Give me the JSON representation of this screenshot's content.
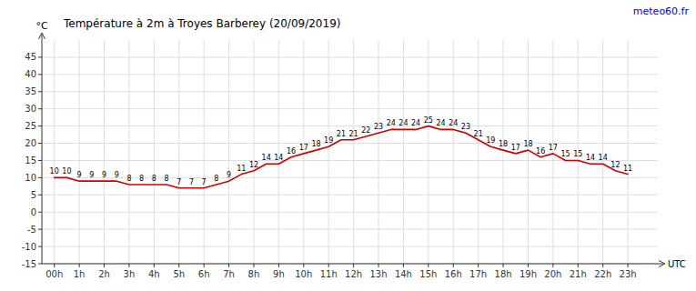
{
  "chart_data": {
    "type": "line",
    "title": "Température à 2m à Troyes Barberey (20/09/2019)",
    "ylabel": "°C",
    "xlabel": "UTC",
    "annotations": [
      {
        "text": "meteo60.fr",
        "color": "#0000cc"
      }
    ],
    "x": [
      0,
      0.5,
      1,
      1.5,
      2,
      2.5,
      3,
      3.5,
      4,
      4.5,
      5,
      5.5,
      6,
      6.5,
      7,
      7.5,
      8,
      8.5,
      9,
      9.5,
      10,
      10.5,
      11,
      11.5,
      12,
      12.5,
      13,
      13.5,
      14,
      14.5,
      15,
      15.5,
      16,
      16.5,
      17,
      17.5,
      18,
      18.5,
      19,
      19.5,
      20,
      20.5,
      21,
      21.5,
      22,
      22.5,
      23
    ],
    "values": [
      10,
      10,
      9,
      9,
      9,
      9,
      8,
      8,
      8,
      8,
      7,
      7,
      7,
      8,
      9,
      11,
      12,
      14,
      14,
      16,
      17,
      18,
      19,
      21,
      21,
      22,
      23,
      24,
      24,
      24,
      25,
      24,
      24,
      23,
      21,
      19,
      18,
      17,
      18,
      16,
      17,
      15,
      15,
      14,
      14,
      12,
      11
    ],
    "color": "#cc0000",
    "xlim": [
      -0.5,
      24.2
    ],
    "xticks": [
      {
        "value": 0,
        "label": "00h"
      },
      {
        "value": 1,
        "label": "1h"
      },
      {
        "value": 2,
        "label": "2h"
      },
      {
        "value": 3,
        "label": "3h"
      },
      {
        "value": 4,
        "label": "4h"
      },
      {
        "value": 5,
        "label": "5h"
      },
      {
        "value": 6,
        "label": "6h"
      },
      {
        "value": 7,
        "label": "7h"
      },
      {
        "value": 8,
        "label": "8h"
      },
      {
        "value": 9,
        "label": "9h"
      },
      {
        "value": 10,
        "label": "10h"
      },
      {
        "value": 11,
        "label": "11h"
      },
      {
        "value": 12,
        "label": "12h"
      },
      {
        "value": 13,
        "label": "13h"
      },
      {
        "value": 14,
        "label": "14h"
      },
      {
        "value": 15,
        "label": "15h"
      },
      {
        "value": 16,
        "label": "16h"
      },
      {
        "value": 17,
        "label": "17h"
      },
      {
        "value": 18,
        "label": "18h"
      },
      {
        "value": 19,
        "label": "19h"
      },
      {
        "value": 20,
        "label": "20h"
      },
      {
        "value": 21,
        "label": "21h"
      },
      {
        "value": 22,
        "label": "22h"
      },
      {
        "value": 23,
        "label": "23h"
      }
    ],
    "ylim": [
      -15,
      50
    ],
    "yticks": [
      -15,
      -10,
      -5,
      0,
      5,
      10,
      15,
      20,
      25,
      30,
      35,
      40,
      45
    ],
    "grid": true,
    "data_labels": true
  }
}
